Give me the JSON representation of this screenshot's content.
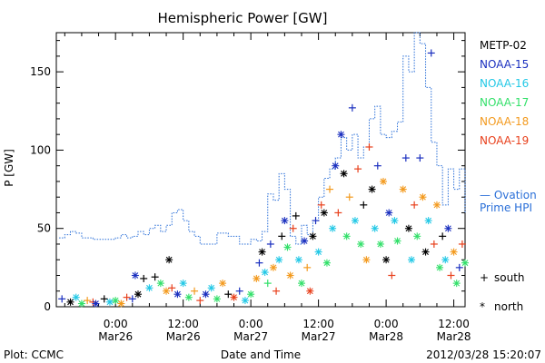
{
  "chart_data": {
    "type": "scatter",
    "title": "Hemispheric Power [GW]",
    "xlabel": "Date and Time",
    "ylabel": "P [GW]",
    "xlim_hours": [
      -10.5,
      62
    ],
    "ylim": [
      0,
      175
    ],
    "y_ticks": [
      0,
      50,
      100,
      150
    ],
    "x_ticks": [
      {
        "hour": 0,
        "line1": "0:00",
        "line2": "Mar26"
      },
      {
        "hour": 12,
        "line1": "12:00",
        "line2": "Mar26"
      },
      {
        "hour": 24,
        "line1": "0:00",
        "line2": "Mar27"
      },
      {
        "hour": 36,
        "line1": "12:00",
        "line2": "Mar27"
      },
      {
        "hour": 48,
        "line1": "0:00",
        "line2": "Mar28"
      },
      {
        "hour": 60,
        "line1": "12:00",
        "line2": "Mar28"
      }
    ],
    "footer_left": "Plot: CCMC",
    "footer_right": "2012/03/28 15:20:07",
    "markers_legend": [
      {
        "symbol": "+",
        "label": "south"
      },
      {
        "symbol": "*",
        "label": "north"
      }
    ],
    "series": [
      {
        "name": "METP-02",
        "color": "#000000"
      },
      {
        "name": "NOAA-15",
        "color": "#1a2fbf"
      },
      {
        "name": "NOAA-16",
        "color": "#22c8e6"
      },
      {
        "name": "NOAA-17",
        "color": "#33e06a"
      },
      {
        "name": "NOAA-18",
        "color": "#f39a1e"
      },
      {
        "name": "NOAA-19",
        "color": "#e8401c"
      }
    ],
    "ovation": {
      "label1": "— Ovation",
      "label2": "Prime HPI",
      "color": "#2a6fd8",
      "points": [
        [
          -10,
          44
        ],
        [
          -9,
          46
        ],
        [
          -8,
          48
        ],
        [
          -7,
          47
        ],
        [
          -6,
          44
        ],
        [
          -4,
          43
        ],
        [
          -2,
          43
        ],
        [
          0,
          44
        ],
        [
          1,
          46
        ],
        [
          2,
          44
        ],
        [
          3,
          45
        ],
        [
          4,
          48
        ],
        [
          5,
          46
        ],
        [
          6,
          50
        ],
        [
          7,
          52
        ],
        [
          8,
          48
        ],
        [
          9,
          52
        ],
        [
          10,
          60
        ],
        [
          11,
          62
        ],
        [
          12,
          55
        ],
        [
          13,
          48
        ],
        [
          14,
          45
        ],
        [
          15,
          40
        ],
        [
          16,
          40
        ],
        [
          18,
          47
        ],
        [
          20,
          45
        ],
        [
          22,
          40
        ],
        [
          24,
          43
        ],
        [
          25,
          42
        ],
        [
          26,
          48
        ],
        [
          27,
          72
        ],
        [
          28,
          68
        ],
        [
          29,
          85
        ],
        [
          30,
          75
        ],
        [
          31,
          45
        ],
        [
          32,
          40
        ],
        [
          33,
          52
        ],
        [
          34,
          46
        ],
        [
          35,
          55
        ],
        [
          36,
          70
        ],
        [
          37,
          82
        ],
        [
          38,
          88
        ],
        [
          39,
          95
        ],
        [
          40,
          108
        ],
        [
          41,
          100
        ],
        [
          42,
          110
        ],
        [
          43,
          95
        ],
        [
          44,
          102
        ],
        [
          45,
          120
        ],
        [
          46,
          128
        ],
        [
          47,
          110
        ],
        [
          48,
          108
        ],
        [
          49,
          112
        ],
        [
          50,
          118
        ],
        [
          51,
          160
        ],
        [
          52,
          150
        ],
        [
          53,
          175
        ],
        [
          54,
          168
        ],
        [
          55,
          140
        ],
        [
          56,
          105
        ],
        [
          57,
          90
        ],
        [
          58,
          65
        ],
        [
          59,
          88
        ],
        [
          60,
          75
        ],
        [
          61,
          88
        ],
        [
          62,
          60
        ]
      ]
    },
    "points": [
      [
        -9.5,
        5,
        1,
        "+"
      ],
      [
        -8,
        3,
        0,
        "*"
      ],
      [
        -7,
        6,
        2,
        "*"
      ],
      [
        -6,
        2,
        3,
        "*"
      ],
      [
        -5,
        4,
        4,
        "+"
      ],
      [
        -4,
        3,
        5,
        "+"
      ],
      [
        -3.5,
        2,
        1,
        "*"
      ],
      [
        -2,
        5,
        0,
        "+"
      ],
      [
        -1,
        3,
        2,
        "*"
      ],
      [
        0,
        4,
        3,
        "*"
      ],
      [
        1,
        2,
        4,
        "*"
      ],
      [
        2,
        6,
        5,
        "+"
      ],
      [
        3,
        5,
        1,
        "+"
      ],
      [
        3.5,
        20,
        1,
        "*"
      ],
      [
        4,
        8,
        0,
        "*"
      ],
      [
        5,
        18,
        0,
        "+"
      ],
      [
        6,
        12,
        2,
        "*"
      ],
      [
        7,
        19,
        0,
        "+"
      ],
      [
        8,
        15,
        3,
        "*"
      ],
      [
        9,
        10,
        4,
        "*"
      ],
      [
        9.5,
        30,
        0,
        "*"
      ],
      [
        10,
        12,
        5,
        "+"
      ],
      [
        11,
        8,
        1,
        "*"
      ],
      [
        12,
        15,
        2,
        "*"
      ],
      [
        13,
        6,
        3,
        "*"
      ],
      [
        14,
        10,
        4,
        "+"
      ],
      [
        15,
        4,
        5,
        "+"
      ],
      [
        16,
        8,
        1,
        "*"
      ],
      [
        17,
        12,
        2,
        "*"
      ],
      [
        18,
        5,
        3,
        "*"
      ],
      [
        19,
        15,
        4,
        "*"
      ],
      [
        20,
        8,
        0,
        "+"
      ],
      [
        21,
        6,
        5,
        "*"
      ],
      [
        22,
        10,
        1,
        "+"
      ],
      [
        23,
        4,
        2,
        "*"
      ],
      [
        24,
        8,
        3,
        "*"
      ],
      [
        25,
        18,
        4,
        "*"
      ],
      [
        25.5,
        28,
        1,
        "+"
      ],
      [
        26,
        35,
        0,
        "*"
      ],
      [
        26.5,
        22,
        2,
        "*"
      ],
      [
        27,
        15,
        3,
        "+"
      ],
      [
        27.5,
        40,
        1,
        "+"
      ],
      [
        28,
        25,
        4,
        "*"
      ],
      [
        28.5,
        10,
        5,
        "+"
      ],
      [
        29,
        30,
        2,
        "*"
      ],
      [
        29.5,
        45,
        0,
        "+"
      ],
      [
        30,
        55,
        1,
        "*"
      ],
      [
        30.5,
        38,
        3,
        "*"
      ],
      [
        31,
        20,
        4,
        "*"
      ],
      [
        31.5,
        50,
        5,
        "+"
      ],
      [
        32,
        58,
        0,
        "+"
      ],
      [
        32.5,
        30,
        2,
        "*"
      ],
      [
        33,
        15,
        3,
        "*"
      ],
      [
        33.5,
        42,
        1,
        "*"
      ],
      [
        34,
        25,
        4,
        "+"
      ],
      [
        34.5,
        10,
        5,
        "*"
      ],
      [
        35,
        45,
        0,
        "*"
      ],
      [
        35.5,
        55,
        1,
        "+"
      ],
      [
        36,
        35,
        2,
        "*"
      ],
      [
        36.5,
        65,
        5,
        "+"
      ],
      [
        37,
        60,
        0,
        "*"
      ],
      [
        37.5,
        28,
        3,
        "*"
      ],
      [
        38,
        75,
        4,
        "+"
      ],
      [
        38.5,
        50,
        2,
        "*"
      ],
      [
        39,
        90,
        1,
        "*"
      ],
      [
        39.5,
        60,
        5,
        "+"
      ],
      [
        40,
        110,
        1,
        "*"
      ],
      [
        40.5,
        85,
        0,
        "*"
      ],
      [
        41,
        45,
        3,
        "*"
      ],
      [
        41.5,
        70,
        4,
        "+"
      ],
      [
        42,
        127,
        1,
        "+"
      ],
      [
        42.5,
        55,
        2,
        "*"
      ],
      [
        43,
        88,
        5,
        "+"
      ],
      [
        43.5,
        40,
        3,
        "*"
      ],
      [
        44,
        65,
        0,
        "+"
      ],
      [
        44.5,
        30,
        4,
        "*"
      ],
      [
        45,
        102,
        5,
        "+"
      ],
      [
        45.5,
        75,
        0,
        "*"
      ],
      [
        46,
        50,
        2,
        "*"
      ],
      [
        46.5,
        90,
        1,
        "+"
      ],
      [
        47,
        40,
        3,
        "*"
      ],
      [
        47.5,
        80,
        4,
        "*"
      ],
      [
        48,
        30,
        0,
        "*"
      ],
      [
        48.5,
        60,
        1,
        "*"
      ],
      [
        49,
        20,
        5,
        "+"
      ],
      [
        49.5,
        55,
        2,
        "*"
      ],
      [
        50,
        42,
        3,
        "*"
      ],
      [
        51,
        75,
        4,
        "*"
      ],
      [
        51.5,
        95,
        1,
        "+"
      ],
      [
        52,
        50,
        0,
        "*"
      ],
      [
        52.5,
        30,
        2,
        "*"
      ],
      [
        53,
        65,
        5,
        "+"
      ],
      [
        53.5,
        45,
        3,
        "*"
      ],
      [
        54,
        95,
        1,
        "+"
      ],
      [
        54.5,
        70,
        4,
        "*"
      ],
      [
        55,
        35,
        0,
        "*"
      ],
      [
        55.5,
        55,
        2,
        "*"
      ],
      [
        56,
        162,
        1,
        "+"
      ],
      [
        56.5,
        40,
        5,
        "+"
      ],
      [
        57,
        65,
        4,
        "*"
      ],
      [
        57.5,
        25,
        3,
        "*"
      ],
      [
        58,
        45,
        0,
        "+"
      ],
      [
        58.5,
        30,
        2,
        "*"
      ],
      [
        59,
        50,
        1,
        "*"
      ],
      [
        59.5,
        20,
        5,
        "+"
      ],
      [
        60,
        35,
        4,
        "*"
      ],
      [
        60.5,
        15,
        3,
        "*"
      ],
      [
        61,
        25,
        1,
        "+"
      ],
      [
        61.5,
        40,
        5,
        "+"
      ],
      [
        62,
        28,
        3,
        "*"
      ]
    ]
  }
}
